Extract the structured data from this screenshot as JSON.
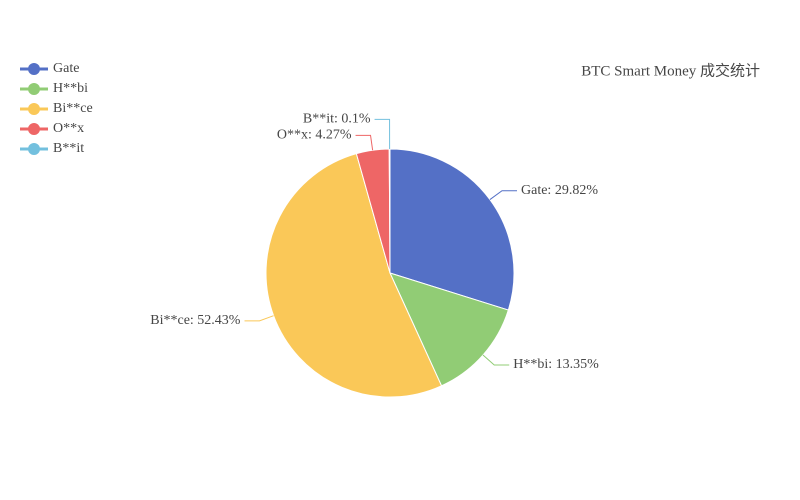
{
  "chart_data": {
    "type": "pie",
    "title": "BTC Smart Money 成交统计",
    "categories": [
      "Gate",
      "H**bi",
      "Bi**ce",
      "O**x",
      "B**it"
    ],
    "values": [
      29.82,
      13.35,
      52.43,
      4.27,
      0.1
    ],
    "value_labels": [
      "Gate: 29.82%",
      "H**bi: 13.35%",
      "Bi**ce: 52.43%",
      "O**x: 4.27%",
      "B**it: 0.1%"
    ],
    "colors": [
      "#5470c6",
      "#91cc75",
      "#fac858",
      "#ee6666",
      "#73c0de"
    ],
    "legend": "top-left"
  }
}
